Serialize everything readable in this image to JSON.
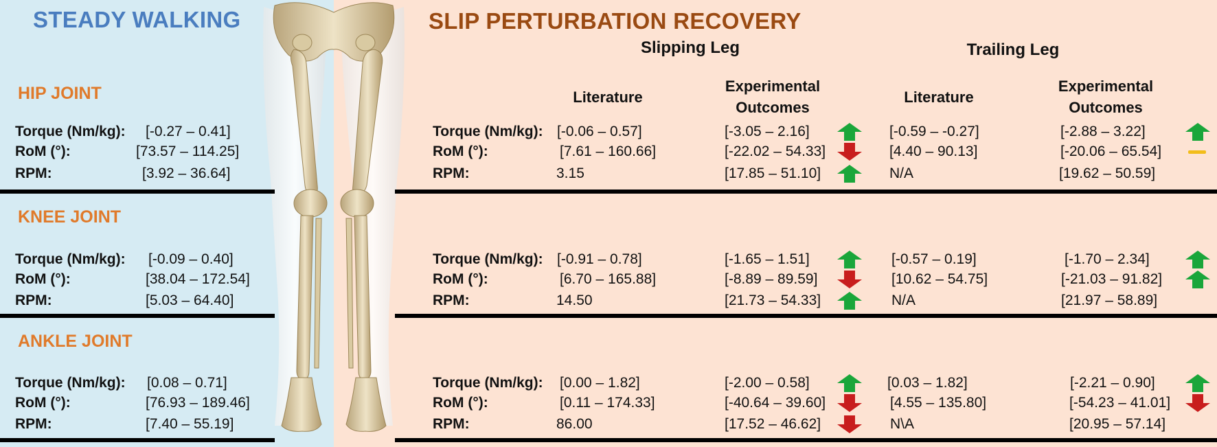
{
  "left": {
    "title": "STEADY WALKING",
    "joints": [
      {
        "name": "HIP JOINT",
        "rows": [
          {
            "label": "Torque (Nm/kg):",
            "value": "[-0.27 – 0.41]"
          },
          {
            "label": "RoM (°):",
            "value": "[73.57 – 114.25]"
          },
          {
            "label": "RPM:",
            "value": "[3.92 – 36.64]"
          }
        ]
      },
      {
        "name": "KNEE JOINT",
        "rows": [
          {
            "label": "Torque (Nm/kg):",
            "value": "[-0.09 – 0.40]"
          },
          {
            "label": "RoM (°):",
            "value": "[38.04 – 172.54]"
          },
          {
            "label": "RPM:",
            "value": "[5.03 – 64.40]"
          }
        ]
      },
      {
        "name": "ANKLE JOINT",
        "rows": [
          {
            "label": "Torque (Nm/kg):",
            "value": "[0.08 – 0.71]"
          },
          {
            "label": "RoM (°):",
            "value": "[76.93 – 189.46]"
          },
          {
            "label": "RPM:",
            "value": "[7.40 – 55.19]"
          }
        ]
      }
    ]
  },
  "right": {
    "title": "SLIP PERTURBATION RECOVERY",
    "slipping_leg": "Slipping Leg",
    "trailing_leg": "Trailing Leg",
    "col_literature": "Literature",
    "col_exp_line1": "Experimental",
    "col_exp_line2": "Outcomes",
    "joints": [
      {
        "rows": [
          {
            "label": "Torque (Nm/kg):",
            "slip_lit": "[-0.06 – 0.57]",
            "slip_exp": "[-3.05 –  2.16]",
            "slip_trend": "up",
            "trail_lit": "[-0.59 – -0.27]",
            "trail_exp": "[-2.88 – 3.22]",
            "trail_trend": "up"
          },
          {
            "label": "RoM (°):",
            "slip_lit": "[7.61 – 160.66]",
            "slip_exp": "[-22.02 – 54.33]",
            "slip_trend": "down",
            "trail_lit": "[4.40 – 90.13]",
            "trail_exp": "[-20.06 – 65.54]",
            "trail_trend": "same"
          },
          {
            "label": "RPM:",
            "slip_lit": "3.15",
            "slip_exp": "[17.85 – 51.10]",
            "slip_trend": "up",
            "trail_lit": "N/A",
            "trail_exp": "[19.62 – 50.59]",
            "trail_trend": "none"
          }
        ]
      },
      {
        "rows": [
          {
            "label": "Torque (Nm/kg):",
            "slip_lit": "[-0.91 – 0.78]",
            "slip_exp": "[-1.65 – 1.51]",
            "slip_trend": "up",
            "trail_lit": "[-0.57 – 0.19]",
            "trail_exp": "[-1.70 – 2.34]",
            "trail_trend": "up"
          },
          {
            "label": "RoM (°):",
            "slip_lit": "[6.70 – 165.88]",
            "slip_exp": "[-8.89 – 89.59]",
            "slip_trend": "down",
            "trail_lit": "[10.62 – 54.75]",
            "trail_exp": "[-21.03 – 91.82]",
            "trail_trend": "up"
          },
          {
            "label": "RPM:",
            "slip_lit": "14.50",
            "slip_exp": "[21.73 – 54.33]",
            "slip_trend": "up",
            "trail_lit": "N/A",
            "trail_exp": "[21.97 – 58.89]",
            "trail_trend": "none"
          }
        ]
      },
      {
        "rows": [
          {
            "label": "Torque (Nm/kg):",
            "slip_lit": "[0.00 – 1.82]",
            "slip_exp": "[-2.00 – 0.58]",
            "slip_trend": "up",
            "trail_lit": "[0.03 – 1.82]",
            "trail_exp": "[-2.21 – 0.90]",
            "trail_trend": "up"
          },
          {
            "label": "RoM (°):",
            "slip_lit": "[0.11 – 174.33]",
            "slip_exp": "[-40.64 – 39.60]",
            "slip_trend": "down",
            "trail_lit": "[4.55 – 135.80]",
            "trail_exp": "[-54.23 – 41.01]",
            "trail_trend": "down"
          },
          {
            "label": "RPM:",
            "slip_lit": "86.00",
            "slip_exp": "[17.52 – 46.62]",
            "slip_trend": "down",
            "trail_lit": "N\\A",
            "trail_exp": "[20.95 – 57.14]",
            "trail_trend": "none"
          }
        ]
      }
    ]
  },
  "icons": {
    "up": "green-up-arrow-icon",
    "down": "red-down-arrow-icon",
    "same": "yellow-dash-icon"
  },
  "colors": {
    "left_bg": "#d6ebf3",
    "right_bg": "#fde3d3",
    "up": "#1aa63a",
    "down": "#c81d1d",
    "same": "#f2bd1a",
    "joint": "#e07a2a",
    "left_title": "#4a7dbf",
    "right_title": "#9a4a12"
  }
}
